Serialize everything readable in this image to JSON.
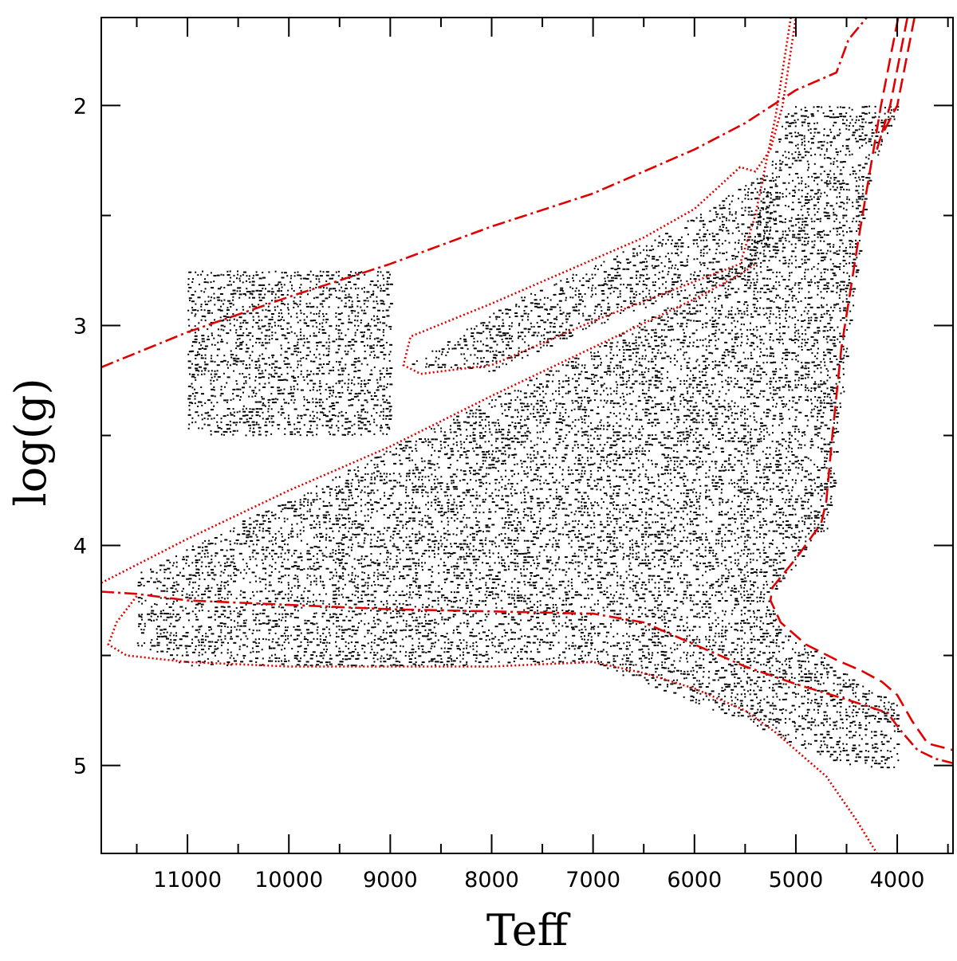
{
  "chart_data": {
    "type": "scatter",
    "title": "",
    "xlabel": "Teff",
    "ylabel": "log(g)",
    "xlim": [
      11850,
      3450
    ],
    "ylim": [
      1.6,
      5.4
    ],
    "x_ticks": [
      11000,
      10000,
      9000,
      8000,
      7000,
      6000,
      5000,
      4000
    ],
    "y_ticks": [
      2,
      3,
      4,
      5
    ],
    "grid": false,
    "legend": "none",
    "colors": {
      "points": "#000000",
      "curves": "#e00000"
    },
    "point_regions": [
      {
        "name": "isolated block",
        "polygon": [
          [
            11000,
            2.75
          ],
          [
            9000,
            2.75
          ],
          [
            9000,
            3.5
          ],
          [
            11000,
            3.5
          ]
        ]
      },
      {
        "name": "horizontal-branch wedge",
        "polygon": [
          [
            8850,
            3.18
          ],
          [
            7800,
            2.88
          ],
          [
            6900,
            2.7
          ],
          [
            6200,
            2.55
          ],
          [
            5500,
            2.35
          ],
          [
            5300,
            2.3
          ],
          [
            5200,
            2.55
          ],
          [
            5400,
            2.72
          ],
          [
            7000,
            3.0
          ],
          [
            8000,
            3.2
          ],
          [
            8850,
            3.18
          ]
        ]
      },
      {
        "name": "main population",
        "polygon": [
          [
            11500,
            4.12
          ],
          [
            9000,
            3.55
          ],
          [
            7000,
            3.1
          ],
          [
            5500,
            2.7
          ],
          [
            5100,
            2.0
          ],
          [
            3980,
            2.0
          ],
          [
            4280,
            2.3
          ],
          [
            4480,
            3.0
          ],
          [
            4680,
            3.9
          ],
          [
            5220,
            4.2
          ],
          [
            5200,
            4.35
          ],
          [
            4300,
            4.65
          ],
          [
            4000,
            4.7
          ],
          [
            4000,
            5.0
          ],
          [
            4500,
            5.0
          ],
          [
            5500,
            4.8
          ],
          [
            7000,
            4.53
          ],
          [
            11000,
            4.55
          ],
          [
            11500,
            4.45
          ],
          [
            11500,
            4.12
          ]
        ]
      }
    ],
    "series": [
      {
        "style": "dash-dot",
        "points": [
          [
            11850,
            3.19
          ],
          [
            11000,
            3.03
          ],
          [
            10000,
            2.87
          ],
          [
            9000,
            2.72
          ],
          [
            8000,
            2.55
          ],
          [
            7000,
            2.4
          ],
          [
            6000,
            2.2
          ],
          [
            5500,
            2.08
          ],
          [
            5000,
            1.93
          ],
          [
            4600,
            1.85
          ],
          [
            4480,
            1.7
          ],
          [
            4300,
            1.6
          ]
        ]
      },
      {
        "style": "dash-dot",
        "points": [
          [
            11850,
            4.21
          ],
          [
            11500,
            4.22
          ],
          [
            11000,
            4.25
          ],
          [
            10000,
            4.27
          ],
          [
            9000,
            4.29
          ],
          [
            8000,
            4.3
          ],
          [
            7000,
            4.31
          ],
          [
            6500,
            4.35
          ],
          [
            6000,
            4.45
          ],
          [
            5500,
            4.55
          ],
          [
            5000,
            4.63
          ],
          [
            4500,
            4.7
          ],
          [
            4100,
            4.76
          ],
          [
            3950,
            4.85
          ],
          [
            3800,
            4.93
          ],
          [
            3620,
            4.97
          ],
          [
            3450,
            4.99
          ]
        ]
      },
      {
        "style": "dashed",
        "points": [
          [
            3990,
            1.6
          ],
          [
            4160,
            2.0
          ],
          [
            4380,
            2.6
          ],
          [
            4550,
            3.1
          ],
          [
            4640,
            3.5
          ],
          [
            4700,
            3.8
          ],
          [
            4750,
            3.9
          ],
          [
            5000,
            4.06
          ],
          [
            5230,
            4.19
          ],
          [
            5250,
            4.25
          ],
          [
            5150,
            4.35
          ],
          [
            4900,
            4.45
          ],
          [
            4600,
            4.52
          ],
          [
            4350,
            4.57
          ],
          [
            4150,
            4.62
          ],
          [
            4000,
            4.68
          ],
          [
            3850,
            4.8
          ],
          [
            3700,
            4.9
          ],
          [
            3450,
            4.93
          ]
        ]
      },
      {
        "style": "dashed",
        "points": [
          [
            3900,
            1.6
          ],
          [
            4070,
            2.0
          ],
          [
            4200,
            2.2
          ]
        ]
      },
      {
        "style": "dashed",
        "points": [
          [
            3830,
            1.6
          ],
          [
            4000,
            2.0
          ],
          [
            4170,
            2.15
          ]
        ]
      },
      {
        "style": "dotted",
        "points": [
          [
            5050,
            1.6
          ],
          [
            5200,
            2.05
          ],
          [
            5400,
            2.5
          ],
          [
            5550,
            2.72
          ],
          [
            6000,
            2.8
          ],
          [
            7000,
            2.98
          ],
          [
            8000,
            3.18
          ],
          [
            8700,
            3.22
          ],
          [
            8870,
            3.18
          ],
          [
            8800,
            3.05
          ],
          [
            8000,
            2.9
          ],
          [
            7000,
            2.7
          ],
          [
            6500,
            2.6
          ],
          [
            6000,
            2.47
          ],
          [
            5550,
            2.28
          ],
          [
            5400,
            2.3
          ],
          [
            5250,
            2.2
          ],
          [
            5130,
            2.0
          ],
          [
            5000,
            1.6
          ]
        ]
      },
      {
        "style": "dotted",
        "points": [
          [
            11850,
            4.17
          ],
          [
            11000,
            3.97
          ],
          [
            10000,
            3.75
          ],
          [
            9000,
            3.55
          ],
          [
            8000,
            3.32
          ],
          [
            7000,
            3.1
          ],
          [
            6000,
            2.88
          ],
          [
            5520,
            2.76
          ],
          [
            5400,
            2.72
          ]
        ]
      },
      {
        "style": "dotted",
        "points": [
          [
            11500,
            4.23
          ],
          [
            11700,
            4.35
          ],
          [
            11780,
            4.45
          ],
          [
            11600,
            4.5
          ],
          [
            11000,
            4.53
          ],
          [
            10000,
            4.55
          ],
          [
            9000,
            4.55
          ],
          [
            8000,
            4.55
          ],
          [
            7000,
            4.53
          ],
          [
            6500,
            4.58
          ],
          [
            6000,
            4.65
          ],
          [
            5500,
            4.75
          ],
          [
            5200,
            4.85
          ],
          [
            5000,
            4.93
          ],
          [
            4700,
            5.05
          ],
          [
            4400,
            5.25
          ],
          [
            4200,
            5.4
          ]
        ]
      }
    ]
  }
}
